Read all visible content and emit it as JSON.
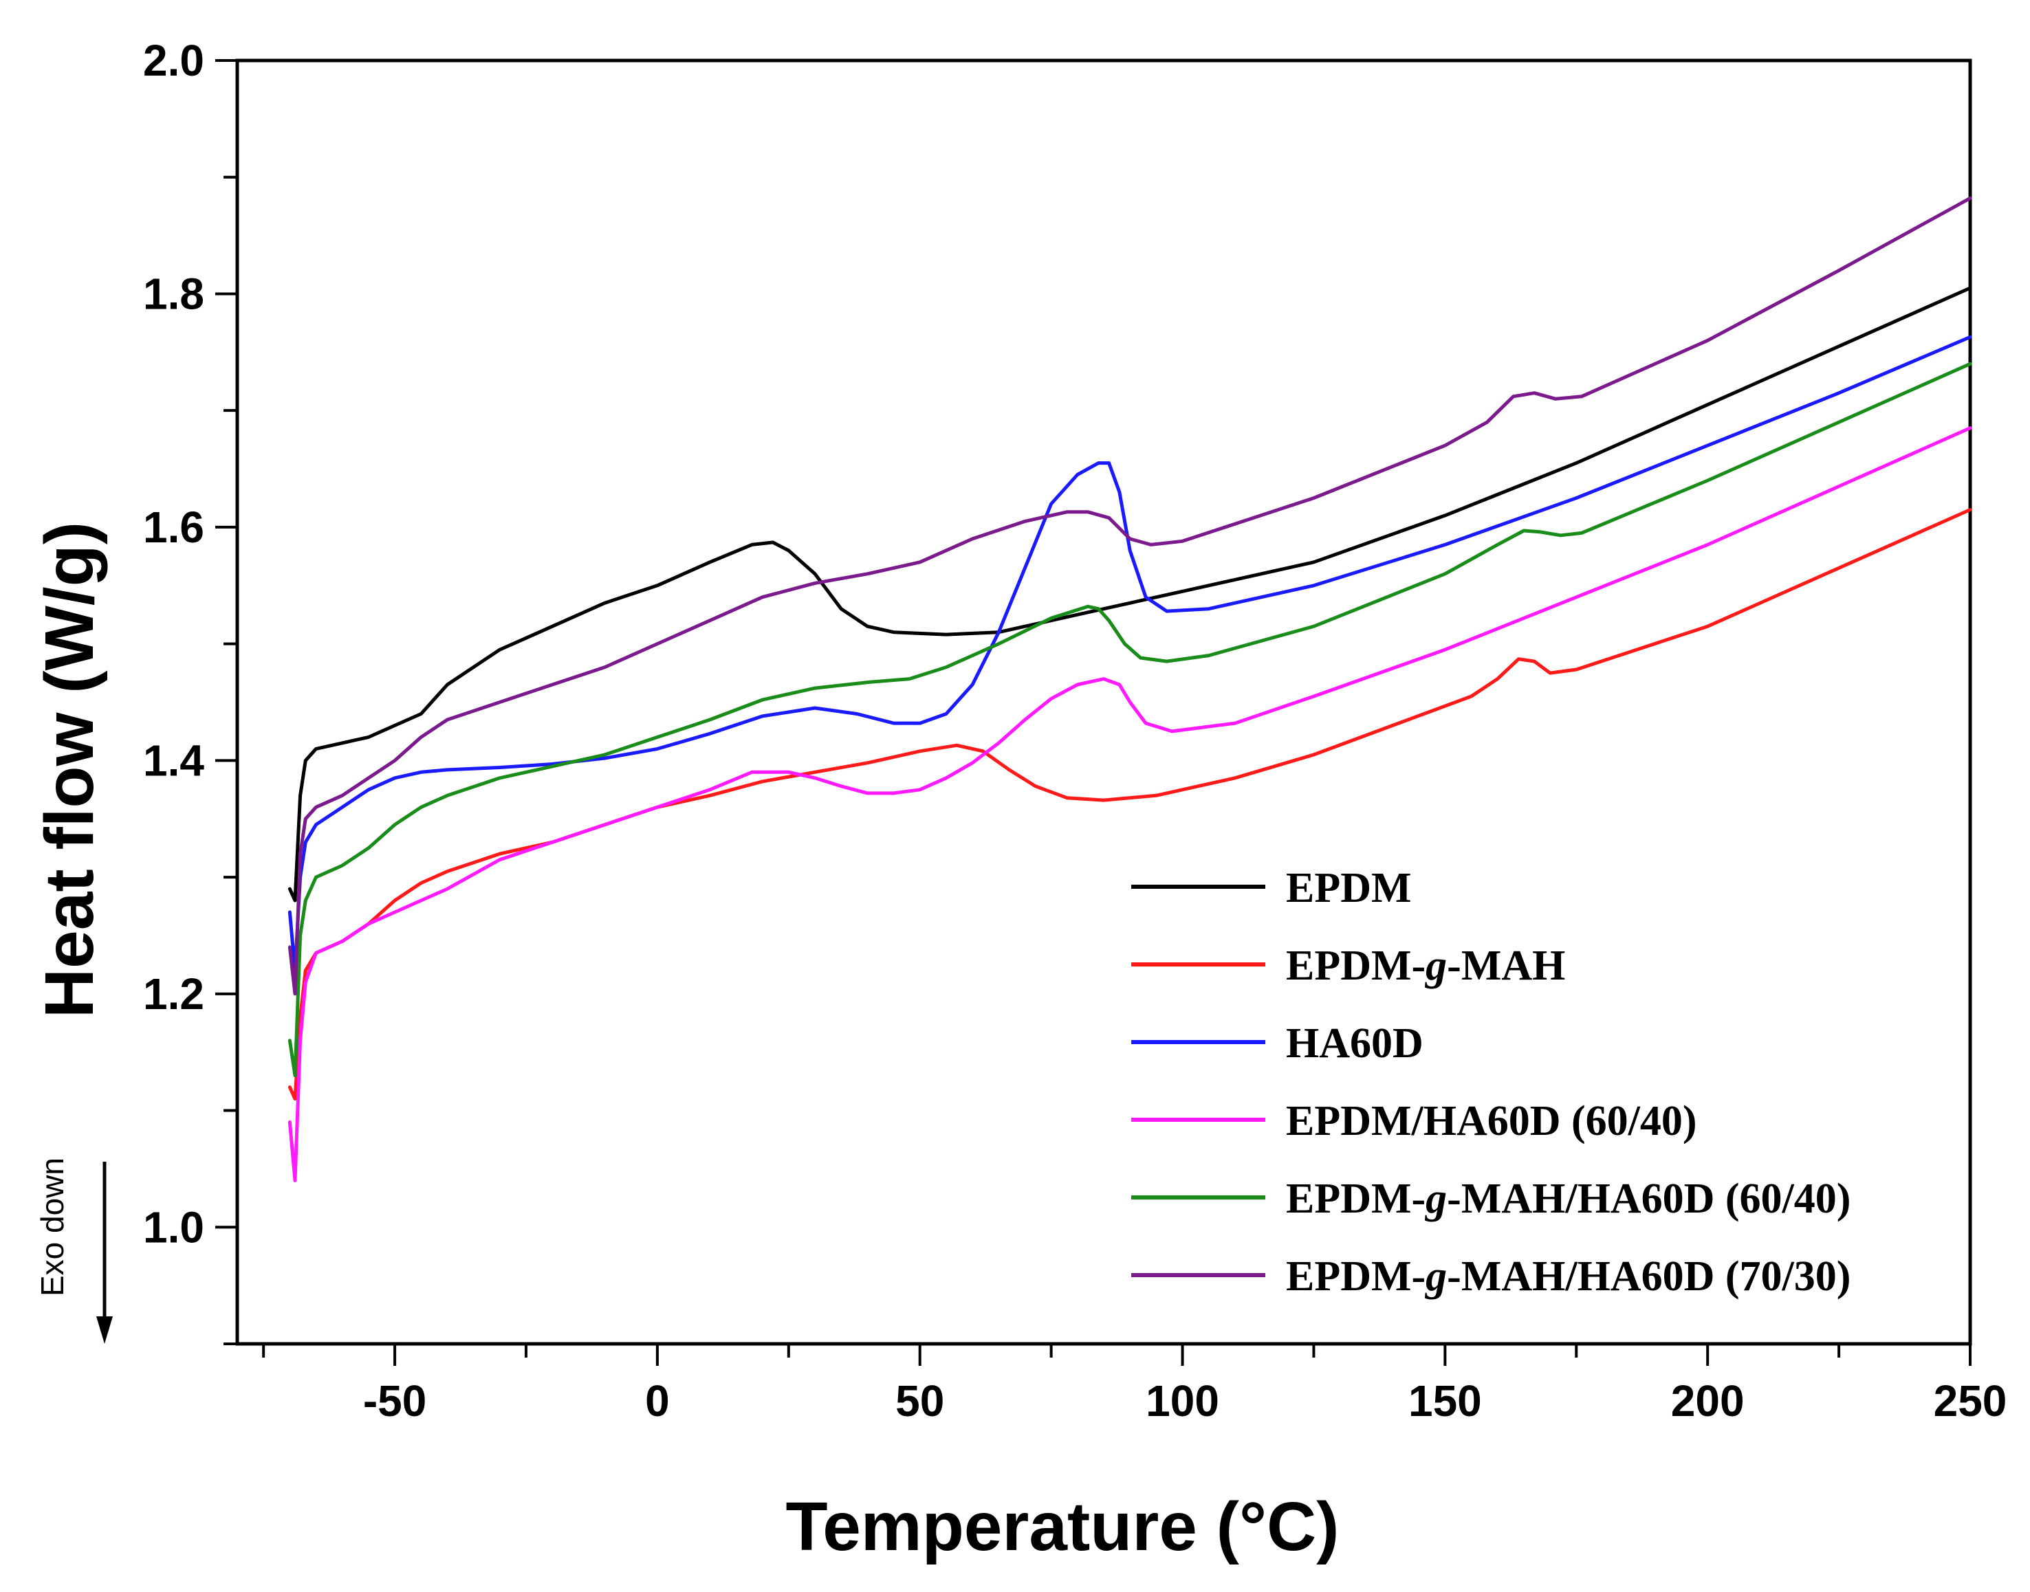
{
  "chart_data": {
    "type": "line",
    "title": "",
    "xlabel": "Temperature (°C)",
    "ylabel": "Heat flow (W/g)",
    "xlim": [
      -80,
      250
    ],
    "ylim": [
      0.9,
      2.0
    ],
    "x_ticks": [
      -50,
      0,
      50,
      100,
      150,
      200,
      250
    ],
    "x_tick_labels": [
      "-50",
      "0",
      "50",
      "100",
      "150",
      "200",
      "250"
    ],
    "y_ticks": [
      1.0,
      1.2,
      1.4,
      1.6,
      1.8,
      2.0
    ],
    "y_tick_labels": [
      "1.0",
      "1.2",
      "1.4",
      "1.6",
      "1.8",
      "2.0"
    ],
    "annotation": "Exo down",
    "legend_position": "lower-right",
    "grid": false,
    "series": [
      {
        "name": "EPDM",
        "legend_parts": [
          {
            "text": "EPDM",
            "italic": false
          }
        ],
        "color": "#000000",
        "points": [
          [
            -70,
            1.29
          ],
          [
            -69,
            1.28
          ],
          [
            -68,
            1.37
          ],
          [
            -67,
            1.4
          ],
          [
            -65,
            1.41
          ],
          [
            -60,
            1.415
          ],
          [
            -55,
            1.42
          ],
          [
            -50,
            1.43
          ],
          [
            -45,
            1.44
          ],
          [
            -40,
            1.465
          ],
          [
            -35,
            1.48
          ],
          [
            -30,
            1.495
          ],
          [
            -25,
            1.505
          ],
          [
            -20,
            1.515
          ],
          [
            -10,
            1.535
          ],
          [
            0,
            1.55
          ],
          [
            10,
            1.57
          ],
          [
            18,
            1.585
          ],
          [
            22,
            1.587
          ],
          [
            25,
            1.58
          ],
          [
            30,
            1.56
          ],
          [
            35,
            1.53
          ],
          [
            40,
            1.515
          ],
          [
            45,
            1.51
          ],
          [
            55,
            1.508
          ],
          [
            65,
            1.51
          ],
          [
            75,
            1.52
          ],
          [
            85,
            1.53
          ],
          [
            100,
            1.545
          ],
          [
            125,
            1.57
          ],
          [
            150,
            1.61
          ],
          [
            175,
            1.655
          ],
          [
            200,
            1.705
          ],
          [
            225,
            1.755
          ],
          [
            250,
            1.805
          ]
        ]
      },
      {
        "name": "EPDM-g-MAH",
        "legend_parts": [
          {
            "text": "EPDM-",
            "italic": false
          },
          {
            "text": "g",
            "italic": true
          },
          {
            "text": "-MAH",
            "italic": false
          }
        ],
        "color": "#ff1a1a",
        "points": [
          [
            -70,
            1.12
          ],
          [
            -69,
            1.11
          ],
          [
            -68,
            1.18
          ],
          [
            -67,
            1.22
          ],
          [
            -65,
            1.235
          ],
          [
            -60,
            1.245
          ],
          [
            -55,
            1.26
          ],
          [
            -50,
            1.28
          ],
          [
            -45,
            1.295
          ],
          [
            -40,
            1.305
          ],
          [
            -30,
            1.32
          ],
          [
            -20,
            1.33
          ],
          [
            -10,
            1.345
          ],
          [
            0,
            1.36
          ],
          [
            10,
            1.37
          ],
          [
            20,
            1.382
          ],
          [
            30,
            1.39
          ],
          [
            40,
            1.398
          ],
          [
            50,
            1.408
          ],
          [
            57,
            1.413
          ],
          [
            62,
            1.408
          ],
          [
            67,
            1.392
          ],
          [
            72,
            1.378
          ],
          [
            78,
            1.368
          ],
          [
            85,
            1.366
          ],
          [
            95,
            1.37
          ],
          [
            110,
            1.385
          ],
          [
            125,
            1.405
          ],
          [
            140,
            1.43
          ],
          [
            155,
            1.455
          ],
          [
            160,
            1.47
          ],
          [
            164,
            1.487
          ],
          [
            167,
            1.485
          ],
          [
            170,
            1.475
          ],
          [
            175,
            1.478
          ],
          [
            200,
            1.515
          ],
          [
            225,
            1.565
          ],
          [
            250,
            1.615
          ]
        ]
      },
      {
        "name": "HA60D",
        "legend_parts": [
          {
            "text": "HA60D",
            "italic": false
          }
        ],
        "color": "#1a1aff",
        "points": [
          [
            -70,
            1.27
          ],
          [
            -69,
            1.22
          ],
          [
            -68,
            1.3
          ],
          [
            -67,
            1.33
          ],
          [
            -65,
            1.345
          ],
          [
            -60,
            1.36
          ],
          [
            -55,
            1.375
          ],
          [
            -50,
            1.385
          ],
          [
            -45,
            1.39
          ],
          [
            -40,
            1.392
          ],
          [
            -30,
            1.394
          ],
          [
            -20,
            1.397
          ],
          [
            -10,
            1.402
          ],
          [
            0,
            1.41
          ],
          [
            10,
            1.423
          ],
          [
            20,
            1.438
          ],
          [
            30,
            1.445
          ],
          [
            38,
            1.44
          ],
          [
            45,
            1.432
          ],
          [
            50,
            1.432
          ],
          [
            55,
            1.44
          ],
          [
            60,
            1.465
          ],
          [
            65,
            1.51
          ],
          [
            70,
            1.565
          ],
          [
            75,
            1.62
          ],
          [
            80,
            1.645
          ],
          [
            84,
            1.655
          ],
          [
            86,
            1.655
          ],
          [
            88,
            1.63
          ],
          [
            90,
            1.58
          ],
          [
            93,
            1.54
          ],
          [
            97,
            1.528
          ],
          [
            105,
            1.53
          ],
          [
            125,
            1.55
          ],
          [
            150,
            1.585
          ],
          [
            175,
            1.625
          ],
          [
            200,
            1.67
          ],
          [
            225,
            1.715
          ],
          [
            250,
            1.763
          ]
        ]
      },
      {
        "name": "EPDM/HA60D (60/40)",
        "legend_parts": [
          {
            "text": "EPDM/HA60D (60/40)",
            "italic": false
          }
        ],
        "color": "#ff1aff",
        "points": [
          [
            -70,
            1.09
          ],
          [
            -69,
            1.04
          ],
          [
            -68,
            1.16
          ],
          [
            -67,
            1.21
          ],
          [
            -65,
            1.235
          ],
          [
            -60,
            1.245
          ],
          [
            -55,
            1.26
          ],
          [
            -50,
            1.27
          ],
          [
            -45,
            1.28
          ],
          [
            -40,
            1.29
          ],
          [
            -30,
            1.315
          ],
          [
            -20,
            1.33
          ],
          [
            -10,
            1.345
          ],
          [
            0,
            1.36
          ],
          [
            10,
            1.375
          ],
          [
            18,
            1.39
          ],
          [
            25,
            1.39
          ],
          [
            30,
            1.385
          ],
          [
            35,
            1.378
          ],
          [
            40,
            1.372
          ],
          [
            45,
            1.372
          ],
          [
            50,
            1.375
          ],
          [
            55,
            1.385
          ],
          [
            60,
            1.398
          ],
          [
            65,
            1.415
          ],
          [
            70,
            1.435
          ],
          [
            75,
            1.453
          ],
          [
            80,
            1.465
          ],
          [
            85,
            1.47
          ],
          [
            88,
            1.465
          ],
          [
            90,
            1.45
          ],
          [
            93,
            1.432
          ],
          [
            98,
            1.425
          ],
          [
            110,
            1.432
          ],
          [
            125,
            1.455
          ],
          [
            150,
            1.495
          ],
          [
            175,
            1.54
          ],
          [
            200,
            1.585
          ],
          [
            225,
            1.635
          ],
          [
            250,
            1.685
          ]
        ]
      },
      {
        "name": "EPDM-g-MAH/HA60D (60/40)",
        "legend_parts": [
          {
            "text": "EPDM-",
            "italic": false
          },
          {
            "text": "g",
            "italic": true
          },
          {
            "text": "-MAH/HA60D (60/40)",
            "italic": false
          }
        ],
        "color": "#1a8c1a",
        "points": [
          [
            -70,
            1.16
          ],
          [
            -69,
            1.13
          ],
          [
            -68,
            1.25
          ],
          [
            -67,
            1.28
          ],
          [
            -65,
            1.3
          ],
          [
            -60,
            1.31
          ],
          [
            -55,
            1.325
          ],
          [
            -50,
            1.345
          ],
          [
            -45,
            1.36
          ],
          [
            -40,
            1.37
          ],
          [
            -30,
            1.385
          ],
          [
            -20,
            1.395
          ],
          [
            -10,
            1.405
          ],
          [
            0,
            1.42
          ],
          [
            10,
            1.435
          ],
          [
            20,
            1.452
          ],
          [
            30,
            1.462
          ],
          [
            40,
            1.467
          ],
          [
            48,
            1.47
          ],
          [
            55,
            1.48
          ],
          [
            65,
            1.5
          ],
          [
            75,
            1.522
          ],
          [
            82,
            1.532
          ],
          [
            84,
            1.53
          ],
          [
            86,
            1.52
          ],
          [
            89,
            1.5
          ],
          [
            92,
            1.488
          ],
          [
            97,
            1.485
          ],
          [
            105,
            1.49
          ],
          [
            125,
            1.515
          ],
          [
            150,
            1.56
          ],
          [
            160,
            1.585
          ],
          [
            165,
            1.597
          ],
          [
            168,
            1.596
          ],
          [
            172,
            1.593
          ],
          [
            176,
            1.595
          ],
          [
            200,
            1.64
          ],
          [
            225,
            1.69
          ],
          [
            250,
            1.74
          ]
        ]
      },
      {
        "name": "EPDM-g-MAH/HA60D (70/30)",
        "legend_parts": [
          {
            "text": "EPDM-",
            "italic": false
          },
          {
            "text": "g",
            "italic": true
          },
          {
            "text": "-MAH/HA60D (70/30)",
            "italic": false
          }
        ],
        "color": "#7a1a8c",
        "points": [
          [
            -70,
            1.24
          ],
          [
            -69,
            1.2
          ],
          [
            -68,
            1.32
          ],
          [
            -67,
            1.35
          ],
          [
            -65,
            1.36
          ],
          [
            -60,
            1.37
          ],
          [
            -55,
            1.385
          ],
          [
            -50,
            1.4
          ],
          [
            -45,
            1.42
          ],
          [
            -40,
            1.435
          ],
          [
            -30,
            1.45
          ],
          [
            -20,
            1.465
          ],
          [
            -10,
            1.48
          ],
          [
            0,
            1.5
          ],
          [
            10,
            1.52
          ],
          [
            20,
            1.54
          ],
          [
            30,
            1.552
          ],
          [
            40,
            1.56
          ],
          [
            50,
            1.57
          ],
          [
            60,
            1.59
          ],
          [
            70,
            1.605
          ],
          [
            78,
            1.613
          ],
          [
            82,
            1.613
          ],
          [
            86,
            1.608
          ],
          [
            90,
            1.59
          ],
          [
            94,
            1.585
          ],
          [
            100,
            1.588
          ],
          [
            125,
            1.625
          ],
          [
            150,
            1.67
          ],
          [
            158,
            1.69
          ],
          [
            163,
            1.712
          ],
          [
            167,
            1.715
          ],
          [
            171,
            1.71
          ],
          [
            176,
            1.712
          ],
          [
            200,
            1.76
          ],
          [
            225,
            1.82
          ],
          [
            250,
            1.882
          ]
        ]
      }
    ]
  }
}
